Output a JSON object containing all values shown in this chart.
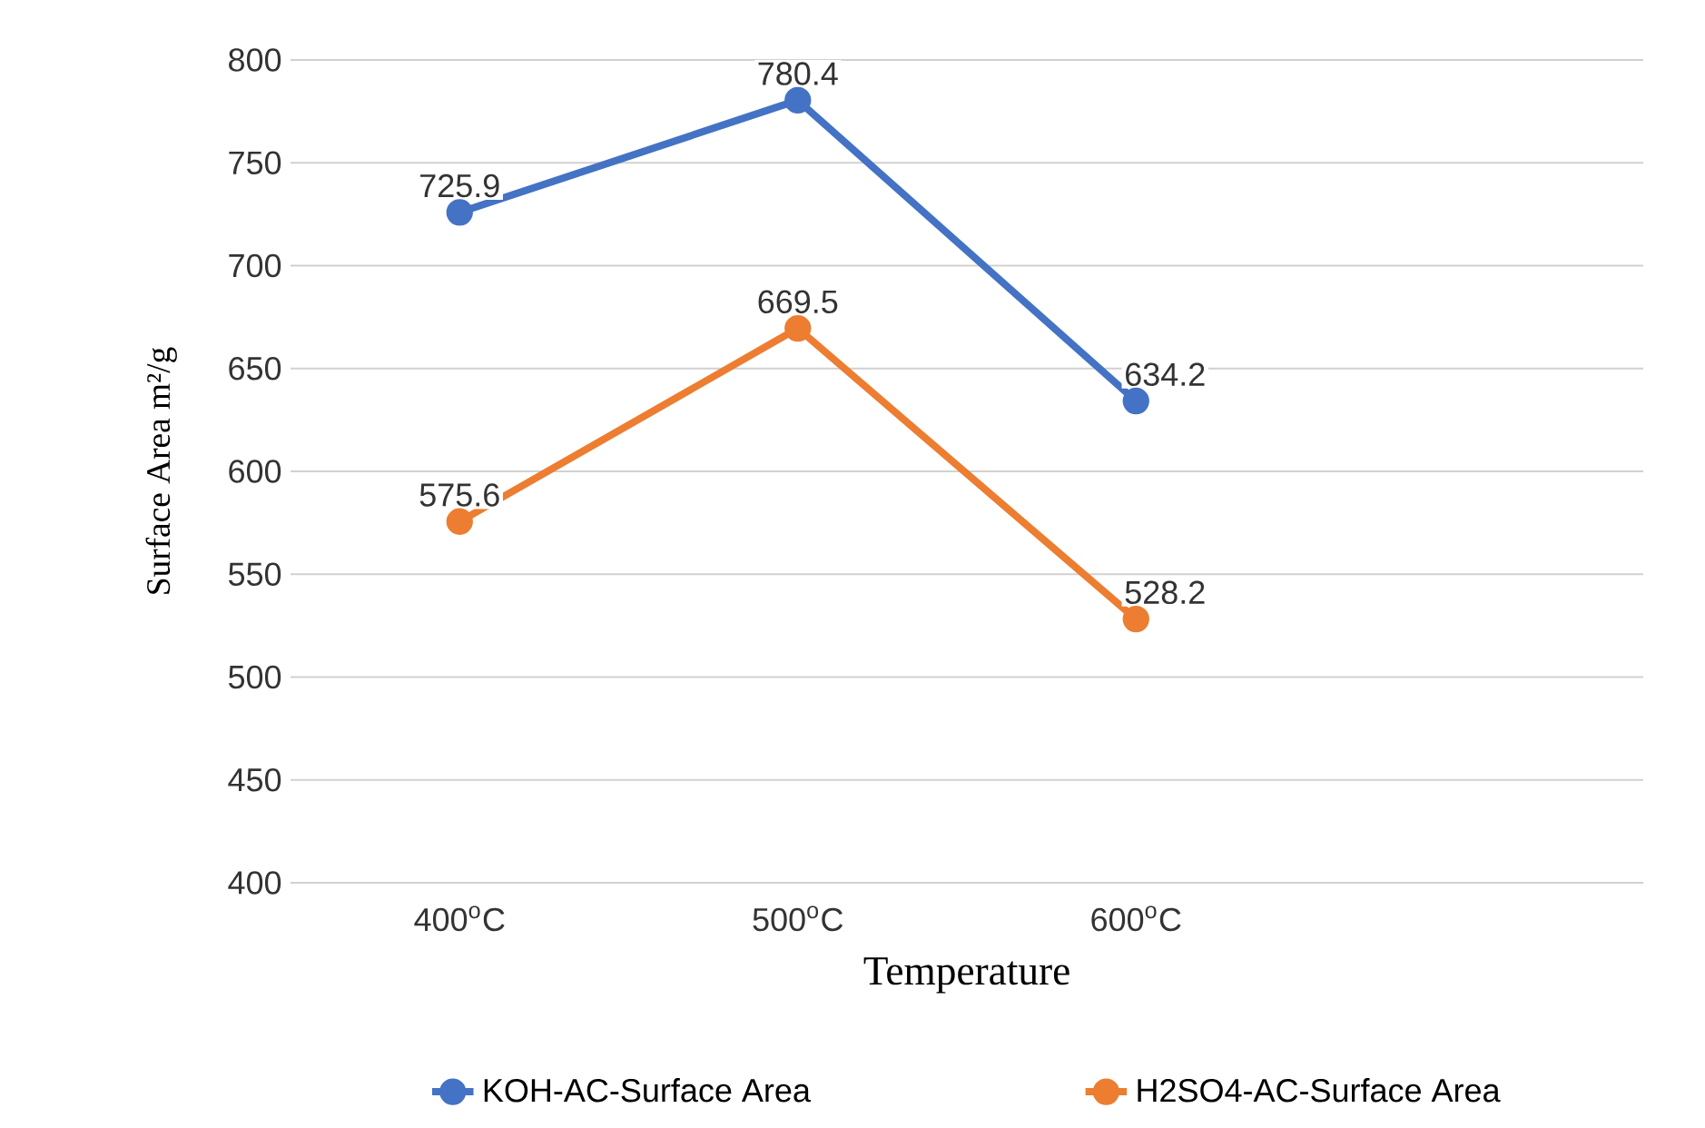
{
  "chart_data": {
    "type": "line",
    "xlabel": "Temperature",
    "ylabel": "Surface Area m²/g",
    "categories": [
      "400$^{o}$C",
      "500$^{o}$C",
      "600$^{o}$C",
      null
    ],
    "series": [
      {
        "name": "KOH-AC-Surface Area",
        "color": "#4472c4",
        "values": [
          725.9,
          780.4,
          634.2,
          null
        ]
      },
      {
        "name": "H2SO4-AC-Surface Area",
        "color": "#ed7d31",
        "values": [
          575.6,
          669.5,
          528.2,
          null
        ]
      }
    ],
    "ylim": [
      400,
      800
    ],
    "yticks": [
      400,
      450,
      500,
      550,
      600,
      650,
      700,
      750,
      800
    ],
    "grid": "y",
    "legend": "bottom",
    "marker": "circle",
    "line_style": "solid",
    "data_labels": true
  }
}
